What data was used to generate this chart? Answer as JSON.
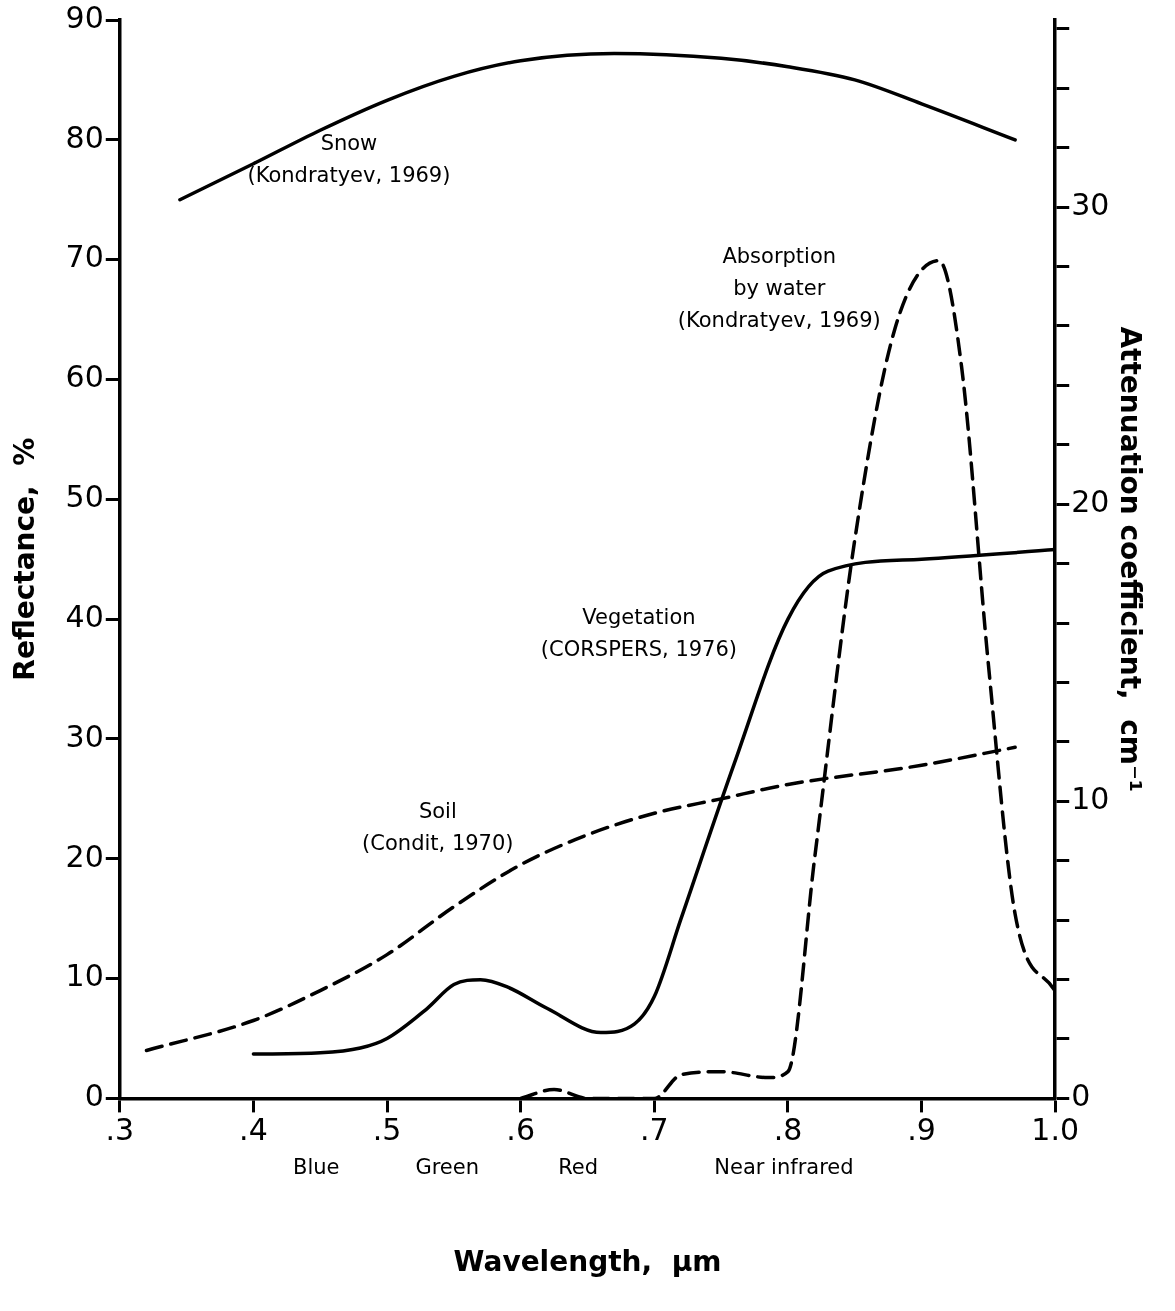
{
  "chart_data": {
    "type": "line",
    "xlabel": "Wavelength,  μm",
    "ylabel": "Reflectance,  %",
    "y2label": "Attenuation coefficient,  cm⁻¹",
    "xlim": [
      0.3,
      1.0
    ],
    "ylim": [
      0,
      90
    ],
    "y2lim": [
      0,
      36.3
    ],
    "xticks": [
      {
        "value": 0.3,
        "label": ".3"
      },
      {
        "value": 0.4,
        "label": ".4"
      },
      {
        "value": 0.5,
        "label": ".5"
      },
      {
        "value": 0.6,
        "label": ".6"
      },
      {
        "value": 0.7,
        "label": ".7"
      },
      {
        "value": 0.8,
        "label": ".8"
      },
      {
        "value": 0.9,
        "label": ".9"
      },
      {
        "value": 1.0,
        "label": "1.0"
      }
    ],
    "yticks": [
      0,
      10,
      20,
      30,
      40,
      50,
      60,
      70,
      80,
      90
    ],
    "y2ticks": [
      0,
      {
        "value": 2,
        "label": null
      },
      {
        "value": 4,
        "label": null
      },
      {
        "value": 6,
        "label": null
      },
      {
        "value": 8,
        "label": null
      },
      10,
      {
        "value": 12,
        "label": null
      },
      {
        "value": 14,
        "label": null
      },
      {
        "value": 16,
        "label": null
      },
      {
        "value": 18,
        "label": null
      },
      20,
      {
        "value": 22,
        "label": null
      },
      {
        "value": 24,
        "label": null
      },
      {
        "value": 26,
        "label": null
      },
      {
        "value": 28,
        "label": null
      },
      30,
      {
        "value": 32,
        "label": null
      },
      {
        "value": 34,
        "label": null
      },
      {
        "value": 36,
        "label": null
      }
    ],
    "grid": false,
    "legend": false,
    "marker": "none",
    "series": [
      {
        "type": "line",
        "name": "Snow\n(Kondratyev, 1969)",
        "color": "#000000",
        "line_style": "solid",
        "x": [
          0.345,
          0.4,
          0.45,
          0.5,
          0.55,
          0.6,
          0.67,
          0.75,
          0.8,
          0.85,
          0.9,
          0.97
        ],
        "values": [
          75,
          78,
          80.8,
          83.3,
          85.3,
          86.6,
          87.2,
          86.8,
          86.1,
          85,
          83,
          80
        ]
      },
      {
        "type": "line",
        "name": "Vegetation\n(CORSPERS, 1976)",
        "color": "#000000",
        "line_style": "solid",
        "x": [
          0.4,
          0.45,
          0.48,
          0.5,
          0.53,
          0.55,
          0.57,
          0.59,
          0.62,
          0.66,
          0.685,
          0.7,
          0.72,
          0.76,
          0.8,
          0.83,
          0.9,
          1.0
        ],
        "values": [
          3.7,
          3.8,
          4.2,
          5,
          7.5,
          9.5,
          9.9,
          9.3,
          7.5,
          5.5,
          6.2,
          8.5,
          15,
          28,
          40,
          44,
          45,
          45.8
        ]
      },
      {
        "type": "line",
        "name": "Soil\n(Condit, 1970)",
        "color": "#000000",
        "line_style": "dashed",
        "x": [
          0.32,
          0.4,
          0.45,
          0.5,
          0.55,
          0.6,
          0.65,
          0.7,
          0.75,
          0.8,
          0.9,
          0.97
        ],
        "values": [
          4,
          6.5,
          9,
          12,
          16,
          19.5,
          22,
          23.8,
          25,
          26.2,
          27.8,
          29.3
        ]
      },
      {
        "type": "line",
        "name": "Absorption\nby water\n(Kondratyev, 1969)",
        "axis": "y2",
        "color": "#000000",
        "line_style": "dashed",
        "x": [
          0.6,
          0.625,
          0.65,
          0.7,
          0.72,
          0.75,
          0.785,
          0.8,
          0.82,
          0.85,
          0.88,
          0.913,
          0.93,
          0.95,
          0.97,
          1.0
        ],
        "values": [
          0,
          0.3,
          0,
          0,
          0.8,
          0.9,
          0.7,
          0.9,
          8.1,
          18.8,
          25.9,
          28.2,
          24.6,
          14.6,
          6.2,
          3.6
        ]
      }
    ],
    "annotations": [
      "Blue",
      "Green",
      "Red",
      "Near infrared"
    ]
  }
}
